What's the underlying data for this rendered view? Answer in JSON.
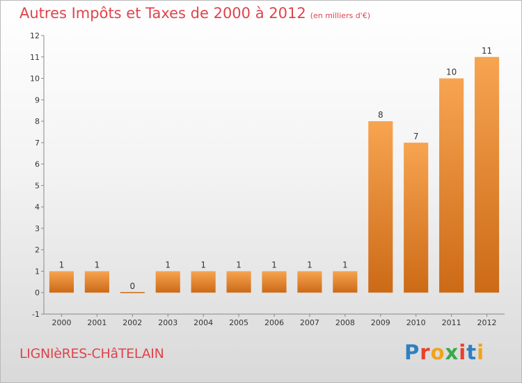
{
  "header": {
    "title": "Autres Impôts et Taxes de 2000 à 2012",
    "unit": "(en milliers d'€)"
  },
  "footer": {
    "commune": "LIGNIèRES-CHâTELAIN",
    "logo": "Proxiti",
    "logo_colors": [
      "#2e7fc1",
      "#e8412c",
      "#f2a31b",
      "#3aa84a",
      "#e8412c",
      "#2e7fc1",
      "#f2a31b"
    ]
  },
  "colors": {
    "bar_light": "#f7a451",
    "bar_dark": "#cc6a16",
    "title": "#e0434b"
  },
  "chart_data": {
    "type": "bar",
    "title": "Autres Impôts et Taxes de 2000 à 2012",
    "categories": [
      "2000",
      "2001",
      "2002",
      "2003",
      "2004",
      "2005",
      "2006",
      "2007",
      "2008",
      "2009",
      "2010",
      "2011",
      "2012"
    ],
    "values": [
      1,
      1,
      0,
      1,
      1,
      1,
      1,
      1,
      1,
      8,
      7,
      10,
      11
    ],
    "ylim": [
      -1,
      12
    ],
    "yticks": [
      -1,
      0,
      1,
      2,
      3,
      4,
      5,
      6,
      7,
      8,
      9,
      10,
      11,
      12
    ],
    "grid": false
  }
}
